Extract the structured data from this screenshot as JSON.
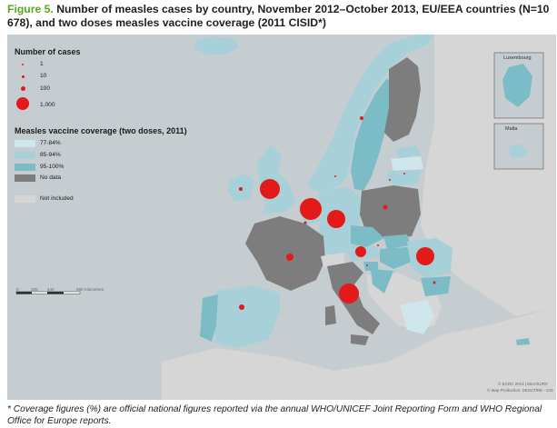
{
  "title": {
    "figure_label": "Figure 5.",
    "text": "Number of measles cases by country, November 2012–October 2013, EU/EEA countries (N=10 678), and two doses measles vaccine coverage (2011 CISID*)"
  },
  "legend": {
    "cases_heading": "Number of cases",
    "case_sizes": [
      {
        "label": "1"
      },
      {
        "label": "10"
      },
      {
        "label": "100"
      },
      {
        "label": "1,000"
      }
    ],
    "coverage_heading": "Measles vaccine coverage (two doses, 2011)",
    "coverage_classes": [
      {
        "label": "77-84%",
        "color": "#cfe6ec"
      },
      {
        "label": "85-94%",
        "color": "#a8d0d8"
      },
      {
        "label": "95-100%",
        "color": "#7cbcc6"
      },
      {
        "label": "No data",
        "color": "#7d7d7d"
      }
    ],
    "not_included": {
      "label": "Not included",
      "color": "#d6d6d6"
    },
    "case_marker_color": "#e21a1a"
  },
  "insets": {
    "luxembourg": "Luxembourg",
    "malta": "Malta"
  },
  "scale_bar": {
    "ticks": [
      "0",
      "220",
      "440",
      "880 Kilometres"
    ]
  },
  "credits": {
    "copyright": "© ECDC 2013 | EEA/SURV",
    "production": "© Map Production: SESUT/RE - GIS"
  },
  "footnote": "* Coverage figures (%) are official national figures reported via the annual WHO/UNICEF Joint Reporting Form and WHO Regional Office for Europe reports."
}
